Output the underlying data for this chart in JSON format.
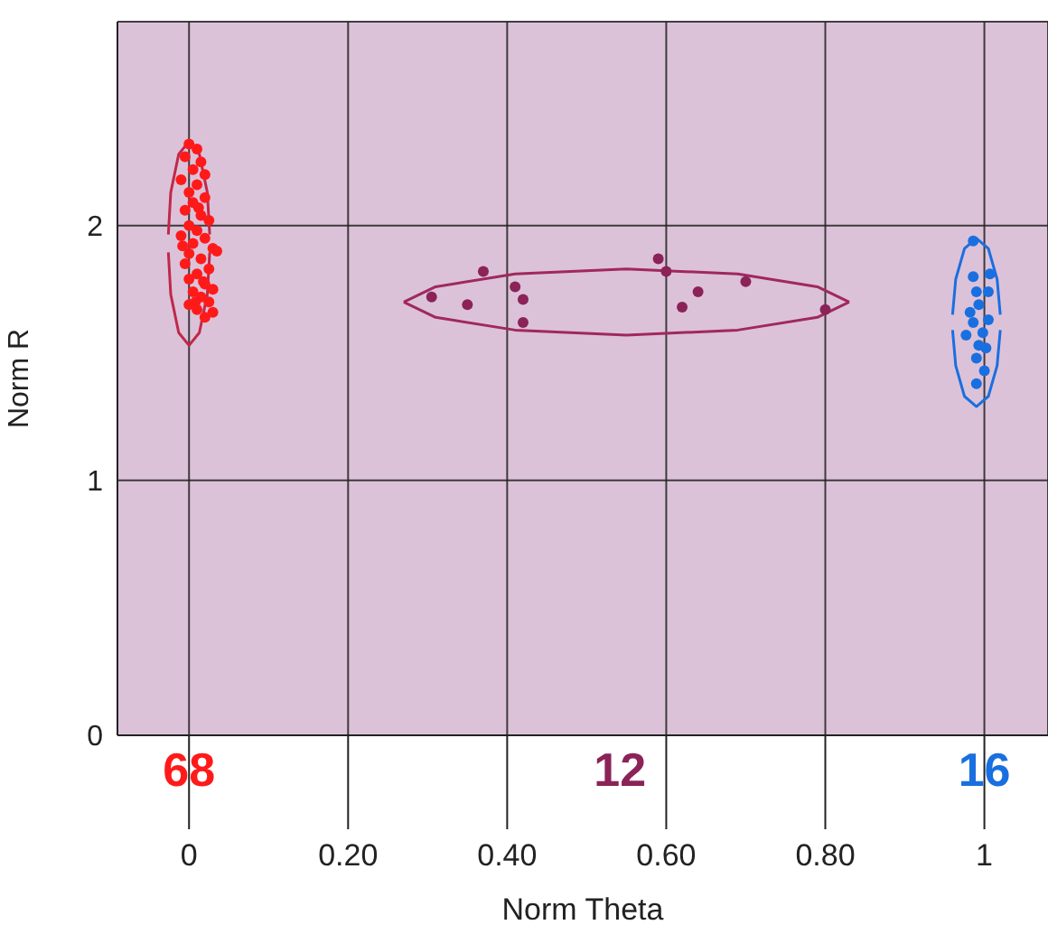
{
  "chart_data": {
    "type": "scatter",
    "xlabel": "Norm Theta",
    "ylabel": "Norm R",
    "xlim": [
      -0.09,
      1.08
    ],
    "ylim": [
      0,
      2.8
    ],
    "xticks": [
      0,
      {
        "value": 0.2,
        "label": "0.20"
      },
      {
        "value": 0.4,
        "label": "0.40"
      },
      {
        "value": 0.6,
        "label": "0.60"
      },
      {
        "value": 0.8,
        "label": "0.80"
      },
      1
    ],
    "yticks": [
      0,
      1,
      2
    ],
    "grid": true,
    "marker": "circle",
    "annotations": [
      {
        "text": "68",
        "x": 0
      },
      "12",
      {
        "text": "16",
        "x": 1
      }
    ],
    "series": [
      {
        "color": "#ff1a1a",
        "x": [
          0.0,
          0.01,
          -0.005,
          0.015,
          0.005,
          0.02,
          -0.01,
          0.01,
          0.0,
          0.02,
          0.005,
          -0.005,
          0.015,
          0.025,
          0.0,
          0.01,
          -0.01,
          0.02,
          0.005,
          0.03,
          0.0,
          0.015,
          -0.005,
          0.025,
          0.01,
          0.0,
          0.02,
          0.03,
          0.005,
          0.015,
          0.025,
          0.0,
          0.01,
          0.03,
          0.02,
          0.035,
          0.012,
          -0.008,
          0.018,
          0.008
        ],
        "values": [
          2.32,
          2.3,
          2.27,
          2.25,
          2.22,
          2.2,
          2.18,
          2.16,
          2.13,
          2.11,
          2.09,
          2.06,
          2.04,
          2.02,
          2.0,
          1.98,
          1.96,
          1.95,
          1.93,
          1.91,
          1.89,
          1.87,
          1.85,
          1.83,
          1.81,
          1.79,
          1.77,
          1.75,
          1.74,
          1.72,
          1.7,
          1.69,
          1.67,
          1.66,
          1.64,
          1.9,
          2.07,
          1.92,
          1.78,
          1.7
        ]
      },
      {
        "color": "#8b2258",
        "x": [
          0.305,
          0.35,
          0.37,
          0.41,
          0.42,
          0.42,
          0.59,
          0.6,
          0.62,
          0.64,
          0.7,
          0.8
        ],
        "values": [
          1.72,
          1.69,
          1.82,
          1.76,
          1.71,
          1.62,
          1.87,
          1.82,
          1.68,
          1.74,
          1.78,
          1.67
        ]
      },
      {
        "color": "#1a6fe0",
        "x": [
          0.986,
          0.986,
          1.007,
          0.99,
          1.005,
          0.993,
          1.005,
          0.986,
          0.998,
          0.977,
          0.993,
          0.99,
          1.0,
          0.99,
          0.982,
          1.002
        ],
        "values": [
          1.94,
          1.8,
          1.81,
          1.74,
          1.74,
          1.69,
          1.63,
          1.62,
          1.58,
          1.57,
          1.53,
          1.48,
          1.43,
          1.38,
          1.66,
          1.52
        ]
      },
      {
        "type": "line",
        "marker": "none",
        "color": "#c0284a",
        "x": [
          -0.026,
          -0.023,
          -0.013,
          0,
          0.013,
          0.023,
          0.026
        ],
        "values": [
          1.965,
          2.13,
          2.28,
          2.33,
          2.28,
          2.13,
          1.965
        ]
      },
      {
        "type": "line",
        "marker": "none",
        "color": "#c0284a",
        "x": [
          -0.026,
          -0.023,
          -0.013,
          0,
          0.013,
          0.023,
          0.026
        ],
        "values": [
          1.895,
          1.73,
          1.58,
          1.53,
          1.58,
          1.73,
          1.895
        ]
      },
      {
        "type": "line",
        "marker": "none",
        "color": "#a0285e",
        "x": [
          0.27,
          0.31,
          0.41,
          0.55,
          0.69,
          0.79,
          0.83
        ],
        "values": [
          1.7,
          1.76,
          1.81,
          1.83,
          1.81,
          1.76,
          1.7
        ]
      },
      {
        "type": "line",
        "marker": "none",
        "color": "#a0285e",
        "x": [
          0.27,
          0.31,
          0.41,
          0.55,
          0.69,
          0.79,
          0.83
        ],
        "values": [
          1.7,
          1.64,
          1.59,
          1.57,
          1.59,
          1.64,
          1.7
        ]
      },
      {
        "type": "line",
        "marker": "none",
        "color": "#1a6fe0",
        "x": [
          0.96,
          0.964,
          0.975,
          0.99,
          1.005,
          1.016,
          1.02
        ],
        "values": [
          1.65,
          1.79,
          1.91,
          1.95,
          1.91,
          1.79,
          1.65
        ]
      },
      {
        "type": "line",
        "marker": "none",
        "color": "#1a6fe0",
        "x": [
          0.96,
          0.964,
          0.975,
          0.99,
          1.005,
          1.016,
          1.02
        ],
        "values": [
          1.59,
          1.45,
          1.33,
          1.29,
          1.33,
          1.45,
          1.59
        ]
      }
    ]
  }
}
